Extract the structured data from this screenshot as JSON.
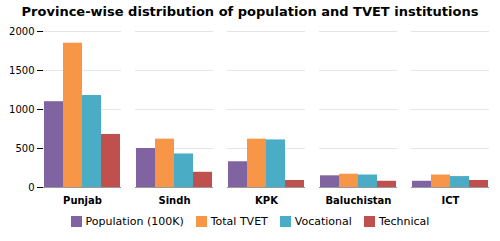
{
  "chart_data": {
    "type": "bar",
    "title": "Province-wise distribution of population and TVET institutions",
    "categories": [
      "Punjab",
      "Sindh",
      "KPK",
      "Baluchistan",
      "ICT"
    ],
    "series": [
      {
        "name": "Population (100K)",
        "color": "#8064a2",
        "values": [
          1100,
          500,
          330,
          150,
          80
        ]
      },
      {
        "name": "Total TVET",
        "color": "#f79646",
        "values": [
          1850,
          620,
          620,
          170,
          160
        ]
      },
      {
        "name": "Vocational",
        "color": "#4bacc6",
        "values": [
          1180,
          430,
          610,
          160,
          140
        ]
      },
      {
        "name": "Technical",
        "color": "#c0504d",
        "values": [
          680,
          195,
          90,
          80,
          90
        ]
      }
    ],
    "ylim": [
      0,
      2000
    ],
    "yticks": [
      0,
      500,
      1000,
      1500,
      2000
    ],
    "grid": true,
    "legend": "bottom"
  }
}
